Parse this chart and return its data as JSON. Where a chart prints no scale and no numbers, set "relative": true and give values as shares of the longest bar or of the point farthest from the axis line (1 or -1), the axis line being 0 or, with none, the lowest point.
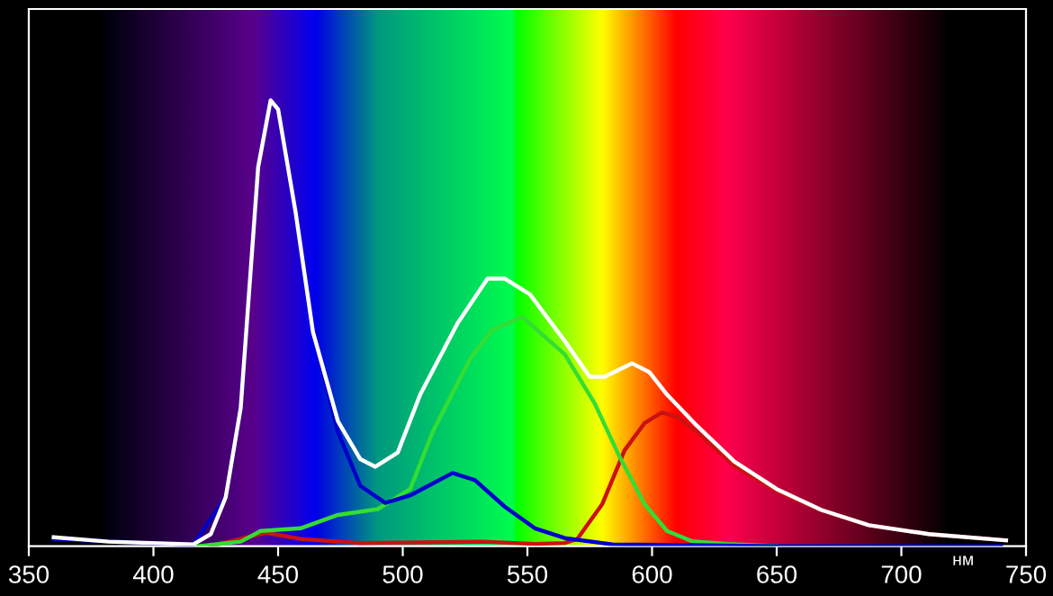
{
  "chart_data": {
    "type": "line",
    "relative": true,
    "xlabel": "нм",
    "xlim": [
      350,
      750
    ],
    "xticks": [
      350,
      400,
      450,
      500,
      550,
      600,
      650,
      700,
      750
    ],
    "grid": false,
    "legend": false,
    "marker": "none",
    "line_style": "solid",
    "series": [
      {
        "color": "#ffffff",
        "x": [
          360,
          382,
          416,
          423,
          429,
          435,
          442,
          447,
          450,
          457,
          464,
          474,
          483,
          489,
          498,
          507,
          522,
          534,
          541,
          551,
          565,
          575,
          581,
          592,
          599,
          606,
          618,
          633,
          650,
          668,
          687,
          711,
          742
        ],
        "values": [
          0.02,
          0.01,
          0.004,
          0.027,
          0.11,
          0.31,
          0.85,
          1.0,
          0.98,
          0.75,
          0.48,
          0.28,
          0.195,
          0.178,
          0.21,
          0.34,
          0.5,
          0.6,
          0.6,
          0.565,
          0.46,
          0.38,
          0.38,
          0.41,
          0.39,
          0.34,
          0.27,
          0.19,
          0.128,
          0.081,
          0.047,
          0.027,
          0.013
        ]
      },
      {
        "color": "#0000cc",
        "x": [
          360,
          416,
          429,
          435,
          442,
          447,
          450,
          457,
          464,
          474,
          483,
          493,
          503,
          520,
          529,
          541,
          553,
          565,
          584,
          650,
          740
        ],
        "values": [
          0.016,
          0.003,
          0.11,
          0.31,
          0.85,
          1.0,
          0.98,
          0.75,
          0.48,
          0.256,
          0.135,
          0.097,
          0.114,
          0.164,
          0.148,
          0.088,
          0.04,
          0.018,
          0.004,
          0.0,
          0.0
        ]
      },
      {
        "color": "#33dd33",
        "x": [
          418,
          435,
          443,
          459,
          474,
          490,
          503,
          512,
          527,
          536,
          546,
          548,
          565,
          577,
          587,
          597,
          606,
          616,
          630,
          650
        ],
        "values": [
          0.0,
          0.01,
          0.034,
          0.04,
          0.07,
          0.083,
          0.128,
          0.256,
          0.42,
          0.485,
          0.51,
          0.514,
          0.43,
          0.32,
          0.2,
          0.094,
          0.034,
          0.011,
          0.005,
          0.0
        ]
      },
      {
        "color": "#cc1111",
        "x": [
          423,
          445,
          459,
          483,
          532,
          553,
          565,
          570,
          580,
          589,
          597,
          604,
          610,
          618,
          633,
          650,
          668,
          687,
          711,
          742
        ],
        "values": [
          0.0,
          0.03,
          0.016,
          0.007,
          0.01,
          0.005,
          0.007,
          0.016,
          0.094,
          0.215,
          0.276,
          0.3,
          0.29,
          0.256,
          0.18,
          0.124,
          0.08,
          0.047,
          0.027,
          0.013
        ]
      }
    ]
  }
}
